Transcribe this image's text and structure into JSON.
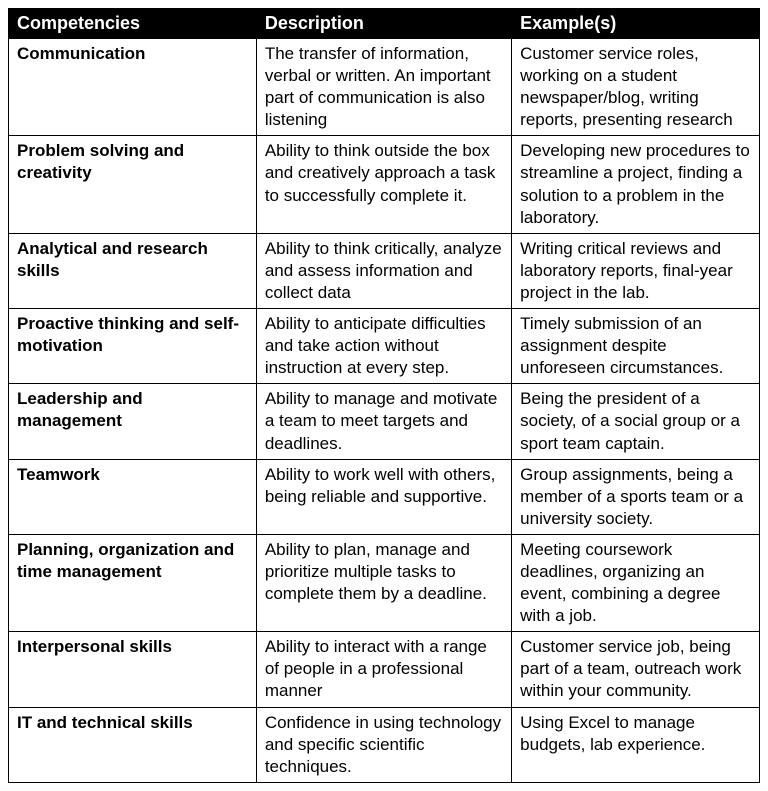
{
  "table": {
    "headers": [
      "Competencies",
      "Description",
      "Example(s)"
    ],
    "header_bg": "#000000",
    "header_fg": "#ffffff",
    "border_color": "#000000",
    "cell_bg": "#ffffff",
    "font_size_header": 18,
    "font_size_cell": 17,
    "column_widths_pct": [
      33,
      34,
      33
    ],
    "rows": [
      {
        "competency": "Communication",
        "description": "The transfer of information, verbal or written. An important part of communication is also listening",
        "example": "Customer service roles, working on a student newspaper/blog, writing reports, presenting research"
      },
      {
        "competency": "Problem solving and creativity",
        "description": "Ability to think outside the box and creatively approach a task to successfully complete it.",
        "example": "Developing new procedures to streamline a project, finding a solution to a problem in the laboratory."
      },
      {
        "competency": "Analytical and research skills",
        "description": "Ability to think critically, analyze and assess information and collect data",
        "example": "Writing critical reviews and laboratory reports, final-year project in the lab."
      },
      {
        "competency": "Proactive thinking and self-motivation",
        "description": "Ability to anticipate difficulties and take action without instruction at every step.",
        "example": "Timely submission of an assignment despite unforeseen circumstances."
      },
      {
        "competency": "Leadership and management",
        "description": "Ability to manage and motivate a team to meet targets and deadlines.",
        "example": " Being the president of a society, of a social group or a sport team captain."
      },
      {
        "competency": "Teamwork",
        "description": "Ability to work well with others, being reliable and supportive.",
        "example": "Group assignments, being a member of a sports team or a university society."
      },
      {
        "competency": "Planning, organization and time management",
        "description": "Ability to plan, manage and prioritize multiple tasks to complete them by a deadline.",
        "example": "Meeting coursework deadlines, organizing an event, combining a degree with a job."
      },
      {
        "competency": "Interpersonal skills",
        "description": "Ability to interact with a range of people in a professional manner",
        "example": "Customer service job, being part of a team, outreach work within your community."
      },
      {
        "competency": "IT and technical skills",
        "description": "Confidence in using technology and specific scientific techniques.",
        "example": "Using Excel to manage budgets, lab experience."
      }
    ]
  }
}
